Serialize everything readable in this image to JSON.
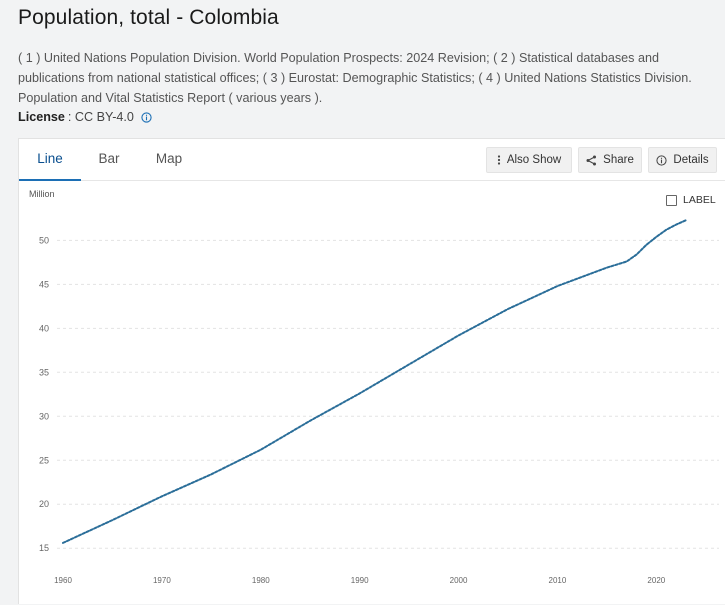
{
  "page": {
    "title": "Population, total - Colombia",
    "sources": "( 1 ) United Nations Population Division. World Population Prospects: 2024 Revision; ( 2 ) Statistical databases and publications from national statistical offices; ( 3 ) Eurostat: Demographic Statistics; ( 4 ) United Nations Statistics Division. Population and Vital Statistics Report ( various years ).",
    "license_label": "License",
    "license_value": ": CC BY-4.0"
  },
  "tabs": [
    {
      "label": "Line",
      "active": true
    },
    {
      "label": "Bar",
      "active": false
    },
    {
      "label": "Map",
      "active": false
    }
  ],
  "toolbar": {
    "also_show": "Also Show",
    "share": "Share",
    "details": "Details"
  },
  "label_toggle": "LABEL",
  "colors": {
    "series": "#2b6e99",
    "accent": "#1c6fb5",
    "grid": "#e3e3e3"
  },
  "chart_data": {
    "type": "line",
    "title": "Population, total - Colombia",
    "ylabel": "Million",
    "xlabel": "",
    "xlim": [
      1960,
      2023
    ],
    "ylim": [
      14,
      53
    ],
    "yticks": [
      15,
      20,
      25,
      30,
      35,
      40,
      45,
      50
    ],
    "xticks": [
      1960,
      1970,
      1980,
      1990,
      2000,
      2010,
      2020
    ],
    "grid": true,
    "series": [
      {
        "name": "Colombia",
        "x": [
          1960,
          1965,
          1970,
          1975,
          1980,
          1985,
          1990,
          1995,
          2000,
          2005,
          2010,
          2015,
          2017,
          2018,
          2019,
          2020,
          2021,
          2022,
          2023
        ],
        "values": [
          15.6,
          18.2,
          20.9,
          23.4,
          26.2,
          29.5,
          32.6,
          35.9,
          39.2,
          42.2,
          44.8,
          46.9,
          47.6,
          48.4,
          49.5,
          50.4,
          51.2,
          51.8,
          52.3
        ]
      }
    ]
  }
}
